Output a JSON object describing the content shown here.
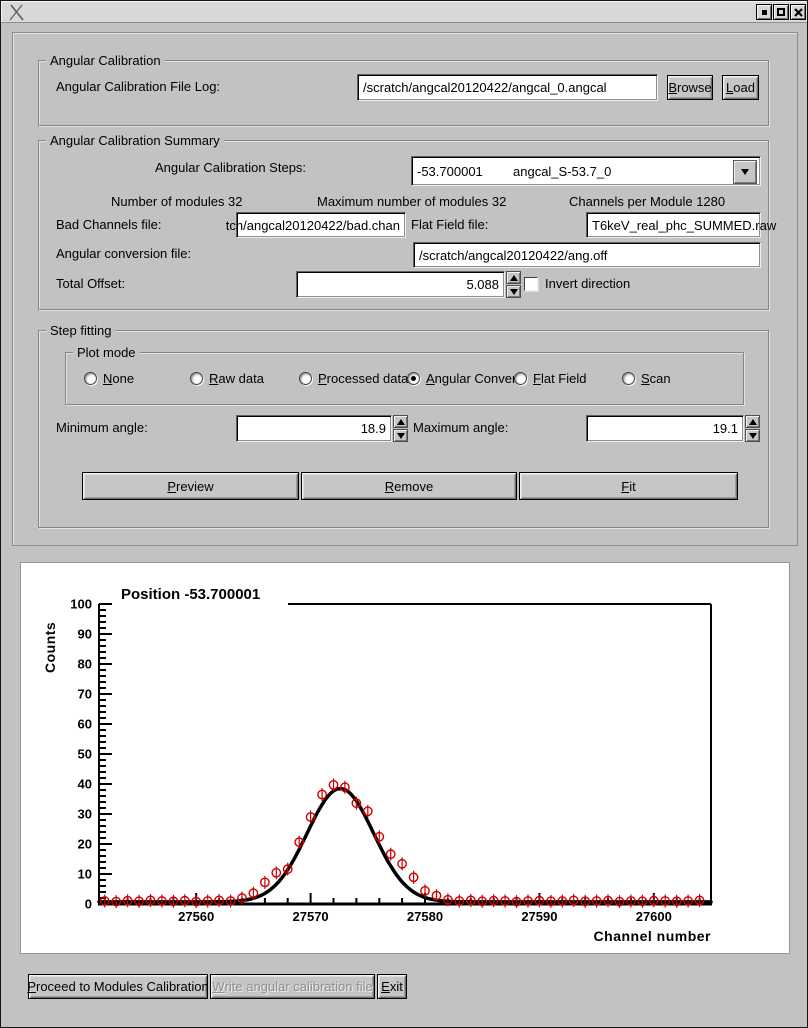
{
  "titlebar": {
    "icons": [
      "x11-logo",
      "minimize",
      "maximize",
      "close"
    ]
  },
  "angular_calibration": {
    "group_label": "Angular Calibration",
    "file_log_label": "Angular Calibration File Log:",
    "file_log_value": "/scratch/angcal20120422/angcal_0.angcal",
    "browse": {
      "label": "Browse",
      "mnemonic": "B"
    },
    "load": {
      "label": "Load",
      "mnemonic": "L"
    }
  },
  "summary": {
    "group_label": "Angular Calibration Summary",
    "steps_label": "Angular Calibration Steps:",
    "steps_position": "-53.700001",
    "steps_name": "angcal_S-53.7_0",
    "num_modules": "Number of modules 32",
    "max_modules": "Maximum number of modules 32",
    "channels_per_module": "Channels per Module 1280",
    "bad_channels_label": "Bad Channels file:",
    "bad_channels_value": "tch/angcal20120422/bad.chan",
    "flat_field_label": "Flat Field file:",
    "flat_field_value": "T6keV_real_phc_SUMMED.raw",
    "ang_conv_label": "Angular conversion file:",
    "ang_conv_value": "/scratch/angcal20120422/ang.off",
    "total_offset_label": "Total Offset:",
    "total_offset_value": "5.088",
    "invert_label": "Invert direction",
    "invert_checked": false
  },
  "step_fitting": {
    "group_label": "Step fitting",
    "plot_mode": {
      "group_label": "Plot mode",
      "options": [
        {
          "label": "None",
          "mnemonic": "N",
          "selected": false
        },
        {
          "label": "Raw data",
          "mnemonic": "R",
          "selected": false
        },
        {
          "label": "Processed data",
          "mnemonic": "P",
          "selected": false
        },
        {
          "label": "Angular Conver",
          "mnemonic": "A",
          "selected": true
        },
        {
          "label": "Flat Field",
          "mnemonic": "F",
          "selected": false
        },
        {
          "label": "Scan",
          "mnemonic": "S",
          "selected": false
        }
      ]
    },
    "min_angle_label": "Minimum angle:",
    "min_angle_value": "18.9",
    "max_angle_label": "Maximum angle:",
    "max_angle_value": "19.1",
    "buttons": [
      {
        "label": "Preview",
        "mnemonic": "P"
      },
      {
        "label": "Remove",
        "mnemonic": "R"
      },
      {
        "label": "Fit",
        "mnemonic": "F"
      }
    ]
  },
  "chart_data": {
    "type": "scatter",
    "title": "Position -53.700001",
    "xlabel": "Channel number",
    "ylabel": "Counts",
    "xlim": [
      27551.5,
      27605
    ],
    "ylim": [
      0,
      100
    ],
    "x_major_ticks": [
      27560,
      27570,
      27580,
      27590,
      27600
    ],
    "y_major_ticks": [
      0,
      10,
      20,
      30,
      40,
      50,
      60,
      70,
      80,
      90,
      100
    ],
    "x_minor_step": 2,
    "y_minor_step": 2,
    "marker_color": "#cc0000",
    "fit": {
      "type": "gaussian",
      "baseline": 0.7,
      "amplitude": 37.8,
      "center": 27572.6,
      "sigma": 2.9,
      "color": "#000000"
    },
    "points": [
      [
        27552,
        1.0
      ],
      [
        27553,
        0.8
      ],
      [
        27554,
        1.1
      ],
      [
        27555,
        0.9
      ],
      [
        27556,
        1.2
      ],
      [
        27557,
        1.0
      ],
      [
        27558,
        0.9
      ],
      [
        27559,
        1.1
      ],
      [
        27560,
        0.8
      ],
      [
        27561,
        1.0
      ],
      [
        27562,
        1.2
      ],
      [
        27563,
        1.0
      ],
      [
        27564,
        2.0
      ],
      [
        27565,
        3.6
      ],
      [
        27566,
        7.2
      ],
      [
        27567,
        10.4
      ],
      [
        27568,
        11.6
      ],
      [
        27569,
        20.6
      ],
      [
        27570,
        29.0
      ],
      [
        27571,
        36.5
      ],
      [
        27572,
        39.7
      ],
      [
        27573,
        38.9
      ],
      [
        27574,
        33.6
      ],
      [
        27575,
        30.9
      ],
      [
        27576,
        22.4
      ],
      [
        27577,
        16.6
      ],
      [
        27578,
        13.4
      ],
      [
        27579,
        8.9
      ],
      [
        27580,
        4.4
      ],
      [
        27581,
        2.8
      ],
      [
        27582,
        1.4
      ],
      [
        27583,
        1.0
      ],
      [
        27584,
        1.2
      ],
      [
        27585,
        0.9
      ],
      [
        27586,
        1.1
      ],
      [
        27587,
        1.0
      ],
      [
        27588,
        0.8
      ],
      [
        27589,
        1.0
      ],
      [
        27590,
        1.1
      ],
      [
        27591,
        0.9
      ],
      [
        27592,
        1.0
      ],
      [
        27593,
        1.2
      ],
      [
        27594,
        0.9
      ],
      [
        27595,
        1.0
      ],
      [
        27596,
        1.1
      ],
      [
        27597,
        0.8
      ],
      [
        27598,
        1.0
      ],
      [
        27599,
        0.9
      ],
      [
        27600,
        1.1
      ],
      [
        27601,
        1.0
      ],
      [
        27602,
        0.9
      ],
      [
        27603,
        1.0
      ],
      [
        27604,
        1.2
      ]
    ]
  },
  "footer": {
    "buttons": [
      {
        "label": "Proceed to Modules Calibration",
        "mnemonic": "P",
        "enabled": true
      },
      {
        "label": "Write angular calibration file",
        "mnemonic": "W",
        "enabled": false
      },
      {
        "label": "Exit",
        "mnemonic": "E",
        "enabled": true
      }
    ]
  }
}
